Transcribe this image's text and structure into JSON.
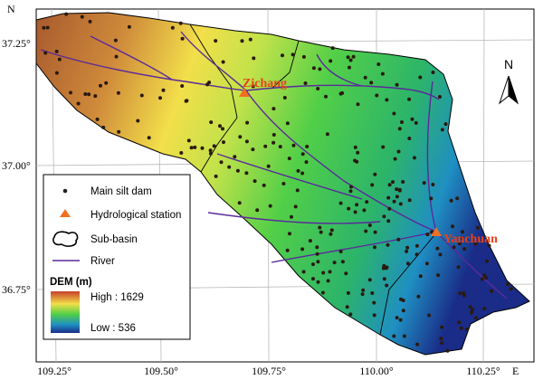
{
  "map": {
    "axis_labels": {
      "lat": "N",
      "lon": "E"
    },
    "lat_ticks": [
      "37.25°",
      "37.00°",
      "36.75°"
    ],
    "lon_ticks": [
      "109.25°",
      "109.50°",
      "109.75°",
      "110.00°",
      "110.25°"
    ],
    "north_arrow": "N",
    "stations": [
      "Zichang",
      "Yanchuan"
    ],
    "legend": {
      "items": [
        "Main silt dam",
        "Hydrological station",
        "Sub-basin",
        "River"
      ],
      "dem_title": "DEM (m)",
      "high": "High : 1629",
      "low": "Low : 536"
    }
  }
}
